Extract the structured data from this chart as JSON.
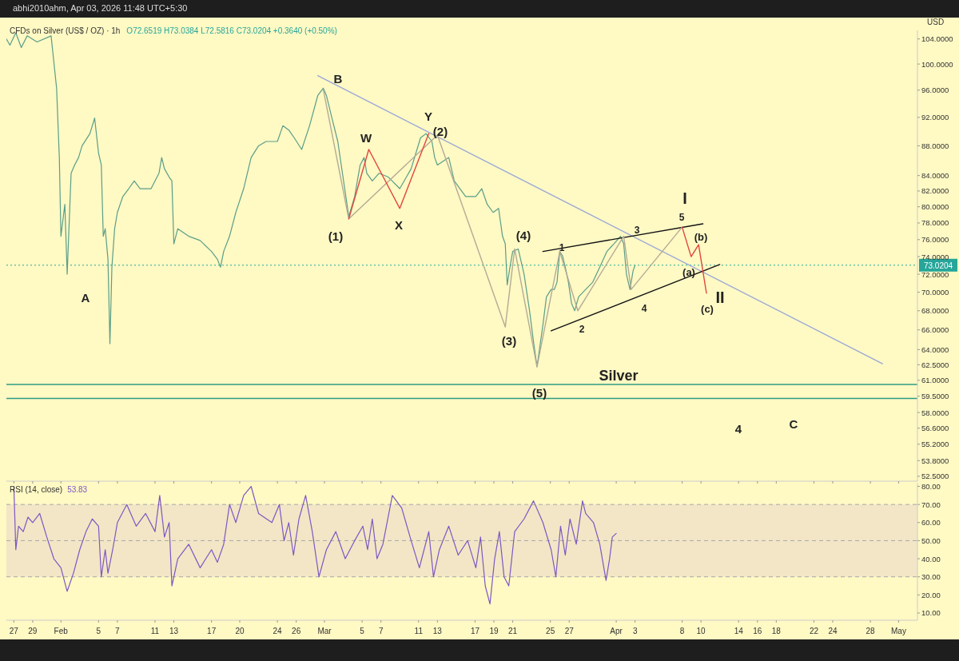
{
  "chart_data": [
    {
      "type": "line",
      "title": "CFDs on Silver (US$ / OZ) · 1h",
      "log": "y",
      "grid": false,
      "tick_labels": "y",
      "xlim": [
        "2026-01-26T05:00",
        "2026-05-03T00:00"
      ],
      "ylim": [
        52.1,
        105.4
      ],
      "xticks": [
        {
          "value": "2026-01-27",
          "label": null
        },
        {
          "value": "2026-01-29",
          "label": null
        },
        {
          "value": "2026-02-01",
          "label": null
        },
        {
          "value": "2026-02-05",
          "label": null
        },
        {
          "value": "2026-02-07",
          "label": null
        },
        {
          "value": "2026-02-11",
          "label": null
        },
        {
          "value": "2026-02-13",
          "label": null
        },
        {
          "value": "2026-02-17",
          "label": null
        },
        {
          "value": "2026-02-20",
          "label": null
        },
        {
          "value": "2026-02-24",
          "label": null
        },
        {
          "value": "2026-02-26",
          "label": null
        },
        {
          "value": "2026-03-01",
          "label": null
        },
        {
          "value": "2026-03-05",
          "label": null
        },
        {
          "value": "2026-03-07",
          "label": null
        },
        {
          "value": "2026-03-11",
          "label": null
        },
        {
          "value": "2026-03-13",
          "label": null
        },
        {
          "value": "2026-03-17",
          "label": null
        },
        {
          "value": "2026-03-19",
          "label": null
        },
        {
          "value": "2026-03-21",
          "label": null
        },
        {
          "value": "2026-03-25",
          "label": null
        },
        {
          "value": "2026-03-27",
          "label": null
        },
        {
          "value": "2026-04-01",
          "label": null
        },
        {
          "value": "2026-04-03",
          "label": null
        },
        {
          "value": "2026-04-08",
          "label": null
        },
        {
          "value": "2026-04-10",
          "label": null
        },
        {
          "value": "2026-04-14",
          "label": null
        },
        {
          "value": "2026-04-16",
          "label": null
        },
        {
          "value": "2026-04-18",
          "label": null
        },
        {
          "value": "2026-04-22",
          "label": null
        },
        {
          "value": "2026-04-24",
          "label": null
        },
        {
          "value": "2026-04-28",
          "label": null
        },
        {
          "value": "2026-05-01",
          "label": null
        }
      ],
      "yticks": [
        {
          "value": 104,
          "label": "104.0000"
        },
        {
          "value": 100,
          "label": "100.0000"
        },
        {
          "value": 96,
          "label": "96.0000"
        },
        {
          "value": 92,
          "label": "92.0000"
        },
        {
          "value": 88,
          "label": "88.0000"
        },
        {
          "value": 84,
          "label": "84.0000"
        },
        {
          "value": 82,
          "label": "82.0000"
        },
        {
          "value": 80,
          "label": "80.0000"
        },
        {
          "value": 78,
          "label": "78.0000"
        },
        {
          "value": 76,
          "label": "76.0000"
        },
        {
          "value": 74,
          "label": "74.0000"
        },
        {
          "value": 72,
          "label": "72.0000"
        },
        {
          "value": 70,
          "label": "70.0000"
        },
        {
          "value": 68,
          "label": "68.0000"
        },
        {
          "value": 66,
          "label": "66.0000"
        },
        {
          "value": 64,
          "label": "64.0000"
        },
        {
          "value": 62.5,
          "label": "62.5000"
        },
        {
          "value": 61,
          "label": "61.0000"
        },
        {
          "value": 59.5,
          "label": "59.5000"
        },
        {
          "value": 58,
          "label": "58.0000"
        },
        {
          "value": 56.6,
          "label": "56.6000"
        },
        {
          "value": 55.2,
          "label": "55.2000"
        },
        {
          "value": 53.8,
          "label": "53.8000"
        },
        {
          "value": 52.5,
          "label": "52.5000"
        }
      ],
      "series": [
        {
          "color": "#5a9e88",
          "x": [
            "2026-01-26T05:00",
            "2026-01-26T14:00",
            "2026-01-27T05:00",
            "2026-01-27T19:00",
            "2026-01-28T10:00",
            "2026-01-29T11:00",
            "2026-01-30T23:00",
            "2026-01-31T13:00",
            "2026-01-31T20:00",
            "2026-02-01T00:00",
            "2026-02-01T10:00",
            "2026-02-01T16:00",
            "2026-02-02T02:00",
            "2026-02-02T11:00",
            "2026-02-02T21:00",
            "2026-02-03T06:00",
            "2026-02-04T02:00",
            "2026-02-04T14:00",
            "2026-02-05T00:00",
            "2026-02-05T07:00",
            "2026-02-05T12:00",
            "2026-02-05T17:00",
            "2026-02-06T00:00",
            "2026-02-06T05:00",
            "2026-02-06T10:00",
            "2026-02-06T17:00",
            "2026-02-07T00:00",
            "2026-02-07T14:00",
            "2026-02-08T05:00",
            "2026-02-08T19:00",
            "2026-02-09T10:00",
            "2026-02-10T14:00",
            "2026-02-11T10:00",
            "2026-02-11T17:00",
            "2026-02-12T00:00",
            "2026-02-12T12:00",
            "2026-02-12T19:00",
            "2026-02-13T00:00",
            "2026-02-13T10:00",
            "2026-02-14T14:00",
            "2026-02-15T19:00",
            "2026-02-17T00:00",
            "2026-02-17T15:00",
            "2026-02-17T23:00",
            "2026-02-18T07:00",
            "2026-02-18T22:00",
            "2026-02-19T14:00",
            "2026-02-20T10:00",
            "2026-02-21T05:00",
            "2026-02-22T00:00",
            "2026-02-22T19:00",
            "2026-02-24T00:00",
            "2026-02-24T14:00",
            "2026-02-25T05:00",
            "2026-02-25T19:00",
            "2026-02-26T14:00",
            "2026-02-27T10:00",
            "2026-02-28T07:00",
            "2026-02-28T21:00",
            "2026-03-01T05:00",
            "2026-03-01T19:00",
            "2026-03-02T10:00",
            "2026-03-03T14:00",
            "2026-03-04T05:00",
            "2026-03-04T19:00",
            "2026-03-05T05:00",
            "2026-03-05T12:00",
            "2026-03-06T02:00",
            "2026-03-06T19:00",
            "2026-03-07T19:00",
            "2026-03-09T00:00",
            "2026-03-10T05:00",
            "2026-03-11T05:00",
            "2026-03-11T19:00",
            "2026-03-12T10:00",
            "2026-03-12T17:00",
            "2026-03-13T00:00",
            "2026-03-14T05:00",
            "2026-03-14T19:00",
            "2026-03-16T00:00",
            "2026-03-17T02:00",
            "2026-03-17T17:00",
            "2026-03-18T07:00",
            "2026-03-18T22:00",
            "2026-03-19T12:00",
            "2026-03-19T22:00",
            "2026-03-20T05:00",
            "2026-03-20T10:00",
            "2026-03-20T17:00",
            "2026-03-21T00:00",
            "2026-03-21T14:00",
            "2026-03-22T05:00",
            "2026-03-22T19:00",
            "2026-03-23T05:00",
            "2026-03-23T14:00",
            "2026-03-24T05:00",
            "2026-03-24T14:00",
            "2026-03-25T02:00",
            "2026-03-25T10:00",
            "2026-03-25T17:00",
            "2026-03-26T00:00",
            "2026-03-26T07:00",
            "2026-03-26T14:00",
            "2026-03-26T22:00",
            "2026-03-27T06:00",
            "2026-03-27T14:00",
            "2026-03-28T00:00",
            "2026-03-28T18:00",
            "2026-03-29T12:00",
            "2026-03-30T06:00",
            "2026-03-31T00:00",
            "2026-03-31T18:00",
            "2026-04-01T11:00",
            "2026-04-01T19:00",
            "2026-04-02T02:00",
            "2026-04-02T11:00",
            "2026-04-02T19:00",
            "2026-04-03T00:00"
          ],
          "values": [
            104,
            103,
            105,
            102.6,
            104.5,
            103.5,
            104.5,
            96.3,
            86.4,
            76.4,
            80.3,
            72.0,
            84.3,
            85.4,
            86.4,
            88.0,
            89.7,
            91.9,
            87.0,
            85.4,
            76.4,
            77.3,
            73.7,
            64.6,
            72.8,
            77.3,
            79.3,
            81.3,
            82.3,
            83.3,
            82.3,
            82.3,
            84.3,
            86.4,
            84.9,
            83.8,
            83.3,
            75.5,
            77.3,
            76.4,
            75.9,
            74.6,
            73.7,
            72.8,
            74.6,
            76.4,
            79.3,
            82.3,
            86.4,
            88.0,
            88.6,
            88.6,
            90.8,
            90.2,
            89.1,
            87.5,
            90.8,
            95.2,
            96.3,
            95.2,
            91.9,
            88.6,
            78.8,
            81.3,
            85.4,
            86.4,
            84.3,
            83.3,
            84.3,
            83.8,
            82.3,
            84.9,
            89.1,
            89.7,
            88.6,
            86.4,
            85.4,
            86.4,
            83.3,
            81.3,
            81.3,
            82.3,
            80.3,
            79.3,
            79.8,
            76.4,
            75.5,
            70.8,
            72.8,
            74.6,
            74.9,
            72.0,
            68.0,
            64.8,
            62.3,
            66.5,
            69.5,
            70.3,
            70.3,
            71.1,
            74.6,
            74.1,
            72.8,
            71.1,
            68.8,
            68.0,
            69.5,
            70.3,
            71.1,
            72.8,
            74.6,
            75.5,
            76.4,
            75.5,
            72.0,
            70.3,
            72.4,
            73.0
          ]
        },
        {
          "color": "#9aa8d6",
          "x": [
            "2026-02-28T07:00",
            "2026-04-29T07:00"
          ],
          "values": [
            98.2,
            62.6
          ]
        },
        {
          "color": "#111111",
          "x": [
            "2026-03-24T05:00",
            "2026-04-10T05:00"
          ],
          "values": [
            74.6,
            77.9
          ]
        },
        {
          "color": "#111111",
          "x": [
            "2026-03-25T02:00",
            "2026-04-12T00:00"
          ],
          "values": [
            65.9,
            73.1
          ]
        },
        {
          "color": "#b3ab95",
          "x": [
            "2026-02-28T21:00",
            "2026-03-03T14:00",
            "2026-03-13T00:00",
            "2026-03-20T05:00",
            "2026-03-21T05:00",
            "2026-03-23T14:00",
            "2026-03-26T00:00",
            "2026-03-27T22:00",
            "2026-04-01T19:00",
            "2026-04-02T14:00",
            "2026-04-08T00:00"
          ],
          "values": [
            96.1,
            78.5,
            89.5,
            66.3,
            74.9,
            62.3,
            74.6,
            68.0,
            76.4,
            70.3,
            77.5
          ]
        },
        {
          "color": "#e0453f",
          "x": [
            "2026-03-03T14:00",
            "2026-03-05T17:00",
            "2026-03-09T00:00",
            "2026-03-12T02:00"
          ],
          "values": [
            78.5,
            87.5,
            79.8,
            89.7
          ]
        },
        {
          "color": "#e0453f",
          "x": [
            "2026-04-08T00:00",
            "2026-04-08T23:00",
            "2026-04-09T18:00",
            "2026-04-10T14:00"
          ],
          "values": [
            77.5,
            74.0,
            75.4,
            69.9
          ]
        }
      ],
      "ref_lines": [
        {
          "axis": "y",
          "value": 73.0204,
          "label": "73.0204",
          "color": "#26a69a",
          "line_style": "dotted"
        },
        {
          "axis": "y",
          "value": 60.6,
          "color": "#2e9c82",
          "line_style": "solid"
        },
        {
          "axis": "y",
          "value": 59.3,
          "color": "#2e9c82",
          "line_style": "solid"
        }
      ],
      "annotations": [
        "abhi2010ahm, Apr 03, 2026 11:48 UTC+5:30",
        "O72.6519 H73.0384 L72.5816 C73.0204 +0.3640 (+0.50%)",
        "USD",
        "A",
        "B",
        "W",
        "X",
        "Y",
        "(2)",
        "(1)",
        "(4)",
        "(3)",
        "(5)",
        "1",
        "2",
        "3",
        "4",
        "5",
        "I",
        "II",
        "(a)",
        "(b)",
        "(c)",
        "Silver",
        "4",
        "C"
      ]
    },
    {
      "type": "line",
      "title": "RSI (14, close)",
      "subtitle": "53.83",
      "grid": false,
      "xlim": [
        "2026-01-26T05:00",
        "2026-05-03T00:00"
      ],
      "ylim": [
        6,
        82
      ],
      "xticks": [
        {
          "value": "2026-01-27",
          "label": "27"
        },
        {
          "value": "2026-01-29",
          "label": "29"
        },
        {
          "value": "2026-02-01",
          "label": "Feb"
        },
        {
          "value": "2026-02-05",
          "label": "5"
        },
        {
          "value": "2026-02-07",
          "label": "7"
        },
        {
          "value": "2026-02-11",
          "label": "11"
        },
        {
          "value": "2026-02-13",
          "label": "13"
        },
        {
          "value": "2026-02-17",
          "label": "17"
        },
        {
          "value": "2026-02-20",
          "label": "20"
        },
        {
          "value": "2026-02-24",
          "label": "24"
        },
        {
          "value": "2026-02-26",
          "label": "26"
        },
        {
          "value": "2026-03-01",
          "label": "Mar"
        },
        {
          "value": "2026-03-05",
          "label": "5"
        },
        {
          "value": "2026-03-07",
          "label": "7"
        },
        {
          "value": "2026-03-11",
          "label": "11"
        },
        {
          "value": "2026-03-13",
          "label": "13"
        },
        {
          "value": "2026-03-17",
          "label": "17"
        },
        {
          "value": "2026-03-19",
          "label": "19"
        },
        {
          "value": "2026-03-21",
          "label": "21"
        },
        {
          "value": "2026-03-25",
          "label": "25"
        },
        {
          "value": "2026-03-27",
          "label": "27"
        },
        {
          "value": "2026-04-01",
          "label": "Apr"
        },
        {
          "value": "2026-04-03",
          "label": "3"
        },
        {
          "value": "2026-04-08",
          "label": "8"
        },
        {
          "value": "2026-04-10",
          "label": "10"
        },
        {
          "value": "2026-04-14",
          "label": "14"
        },
        {
          "value": "2026-04-16",
          "label": "16"
        },
        {
          "value": "2026-04-18",
          "label": "18"
        },
        {
          "value": "2026-04-22",
          "label": "22"
        },
        {
          "value": "2026-04-24",
          "label": "24"
        },
        {
          "value": "2026-04-28",
          "label": "28"
        },
        {
          "value": "2026-05-01",
          "label": "May"
        }
      ],
      "yticks": [
        {
          "value": 80,
          "label": "80.00"
        },
        {
          "value": 70,
          "label": "70.00"
        },
        {
          "value": 60,
          "label": "60.00"
        },
        {
          "value": 50,
          "label": "50.00"
        },
        {
          "value": 40,
          "label": "40.00"
        },
        {
          "value": 30,
          "label": "30.00"
        },
        {
          "value": 20,
          "label": "20.00"
        },
        {
          "value": 10,
          "label": "10.00"
        }
      ],
      "series": [
        {
          "color": "#7e57c2",
          "x": [
            "2026-01-27T00:00",
            "2026-01-27T05:00",
            "2026-01-27T12:00",
            "2026-01-28T00:00",
            "2026-01-28T12:00",
            "2026-01-29T00:00",
            "2026-01-29T18:00",
            "2026-01-30T12:00",
            "2026-01-31T06:00",
            "2026-02-01T00:00",
            "2026-02-01T16:00",
            "2026-02-02T08:00",
            "2026-02-03T00:00",
            "2026-02-03T16:00",
            "2026-02-04T08:00",
            "2026-02-05T00:00",
            "2026-02-05T07:00",
            "2026-02-05T17:00",
            "2026-02-06T00:00",
            "2026-02-06T12:00",
            "2026-02-07T00:00",
            "2026-02-08T00:00",
            "2026-02-09T00:00",
            "2026-02-10T00:00",
            "2026-02-11T00:00",
            "2026-02-11T12:00",
            "2026-02-12T00:00",
            "2026-02-12T12:00",
            "2026-02-12T19:00",
            "2026-02-13T10:00",
            "2026-02-14T14:00",
            "2026-02-15T19:00",
            "2026-02-17T00:00",
            "2026-02-17T15:00",
            "2026-02-18T07:00",
            "2026-02-18T22:00",
            "2026-02-19T14:00",
            "2026-02-20T10:00",
            "2026-02-21T05:00",
            "2026-02-22T00:00",
            "2026-02-23T10:00",
            "2026-02-24T05:00",
            "2026-02-24T17:00",
            "2026-02-25T05:00",
            "2026-02-25T17:00",
            "2026-02-26T07:00",
            "2026-02-27T00:00",
            "2026-02-27T17:00",
            "2026-02-28T10:00",
            "2026-03-01T05:00",
            "2026-03-02T05:00",
            "2026-03-03T05:00",
            "2026-03-04T05:00",
            "2026-03-05T02:00",
            "2026-03-05T14:00",
            "2026-03-06T02:00",
            "2026-03-06T14:00",
            "2026-03-07T05:00",
            "2026-03-08T05:00",
            "2026-03-09T05:00",
            "2026-03-10T05:00",
            "2026-03-11T02:00",
            "2026-03-11T14:00",
            "2026-03-12T02:00",
            "2026-03-12T14:00",
            "2026-03-13T05:00",
            "2026-03-14T05:00",
            "2026-03-15T05:00",
            "2026-03-16T05:00",
            "2026-03-17T02:00",
            "2026-03-17T14:00",
            "2026-03-18T02:00",
            "2026-03-18T14:00",
            "2026-03-19T02:00",
            "2026-03-19T14:00",
            "2026-03-20T02:00",
            "2026-03-20T14:00",
            "2026-03-21T05:00",
            "2026-03-22T05:00",
            "2026-03-23T05:00",
            "2026-03-24T05:00",
            "2026-03-25T02:00",
            "2026-03-25T14:00",
            "2026-03-26T02:00",
            "2026-03-26T14:00",
            "2026-03-27T02:00",
            "2026-03-27T18:00",
            "2026-03-28T10:00",
            "2026-03-28T18:00",
            "2026-03-29T14:00",
            "2026-03-30T06:00",
            "2026-03-30T22:00",
            "2026-03-31T07:00",
            "2026-03-31T14:00",
            "2026-04-01T00:00"
          ],
          "values": [
            80,
            45,
            58,
            55,
            63,
            60,
            65,
            52,
            40,
            35,
            22,
            32,
            45,
            55,
            62,
            58,
            30,
            45,
            32,
            45,
            60,
            70,
            58,
            65,
            55,
            75,
            52,
            60,
            25,
            40,
            48,
            35,
            45,
            38,
            48,
            70,
            60,
            75,
            80,
            65,
            60,
            70,
            50,
            60,
            42,
            62,
            75,
            55,
            30,
            45,
            55,
            40,
            50,
            58,
            45,
            62,
            40,
            48,
            75,
            68,
            50,
            35,
            45,
            55,
            30,
            45,
            58,
            42,
            50,
            35,
            52,
            25,
            15,
            40,
            55,
            30,
            25,
            55,
            62,
            72,
            60,
            45,
            30,
            58,
            42,
            62,
            48,
            72,
            65,
            60,
            48,
            28,
            40,
            52,
            54
          ]
        }
      ],
      "ref_lines": [
        {
          "axis": "y",
          "value": 70,
          "color": "#a8a8a8",
          "line_style": "dashed"
        },
        {
          "axis": "y",
          "value": 50,
          "color": "#a8a8a8",
          "line_style": "dashed"
        },
        {
          "axis": "y",
          "value": 30,
          "color": "#a8a8a8",
          "line_style": "dashed"
        }
      ],
      "bands": [
        {
          "axis": "y",
          "from": 30,
          "to": 70,
          "color": "#f2e6c6"
        }
      ]
    }
  ]
}
